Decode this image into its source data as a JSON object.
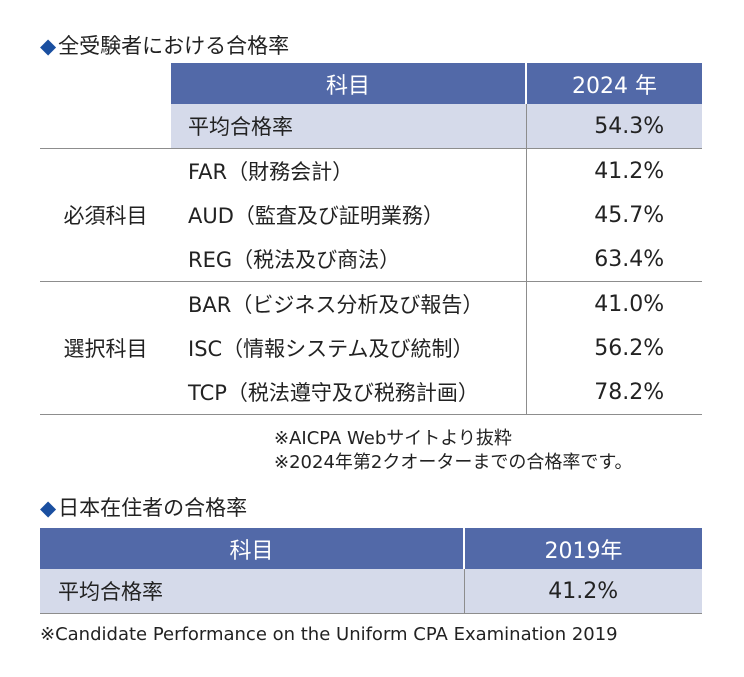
{
  "section1": {
    "title": "全受験者における合格率",
    "header_subject": "科目",
    "header_year": "2024 年",
    "average": {
      "label": "平均合格率",
      "value": "54.3%"
    },
    "groups": [
      {
        "name": "必須科目",
        "rows": [
          {
            "label": "FAR（財務会計）",
            "value": "41.2%"
          },
          {
            "label": "AUD（監査及び証明業務）",
            "value": "45.7%"
          },
          {
            "label": "REG（税法及び商法）",
            "value": "63.4%"
          }
        ]
      },
      {
        "name": "選択科目",
        "rows": [
          {
            "label": "BAR（ビジネス分析及び報告）",
            "value": "41.0%"
          },
          {
            "label": "ISC（情報システム及び統制）",
            "value": "56.2%"
          },
          {
            "label": "TCP（税法遵守及び税務計画）",
            "value": "78.2%"
          }
        ]
      }
    ],
    "notes": [
      "※AICPA Webサイトより抜粋",
      "※2024年第2クオーターまでの合格率です。"
    ]
  },
  "section2": {
    "title": "日本在住者の合格率",
    "header_subject": "科目",
    "header_year": "2019年",
    "average": {
      "label": "平均合格率",
      "value": "41.2%"
    },
    "note": "※Candidate Performance on the Uniform CPA Examination 2019"
  },
  "colors": {
    "header_bg": "#5269a8",
    "average_row_bg": "#d5daea",
    "diamond": "#1a4fa0"
  }
}
